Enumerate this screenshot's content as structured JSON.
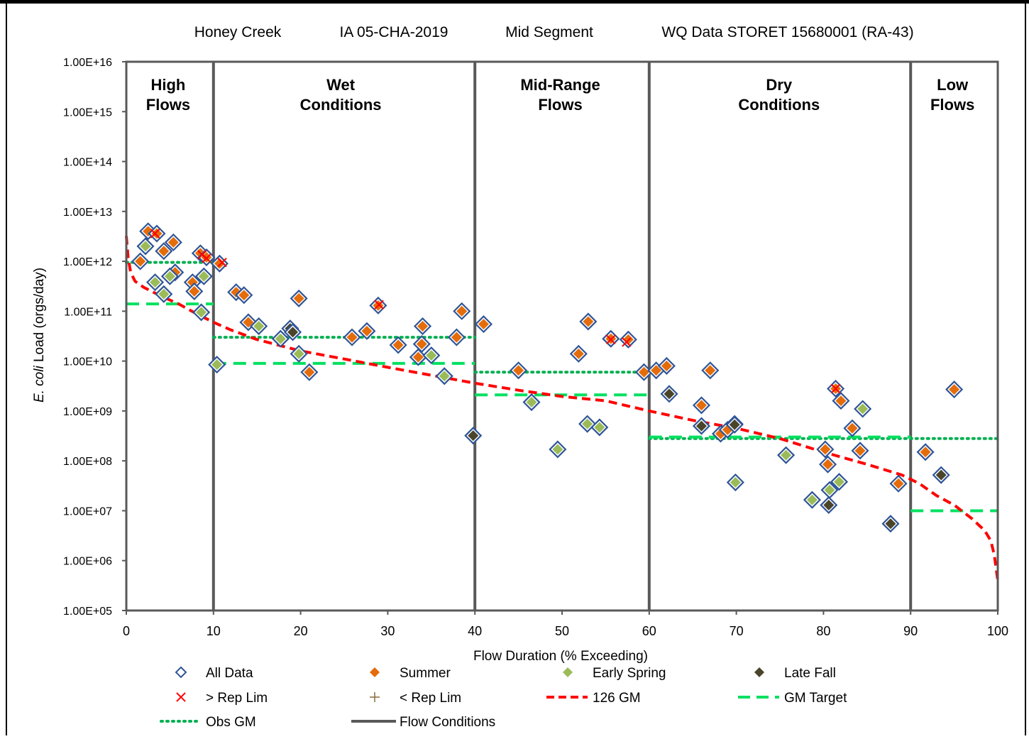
{
  "chart_data": {
    "type": "scatter",
    "title_parts": [
      "Honey Creek",
      "IA 05-CHA-2019",
      "Mid Segment",
      "WQ Data STORET 15680001 (RA-43)"
    ],
    "xlabel": "Flow Duration (% Exceeding)",
    "ylabel_italic": "E. coli",
    "ylabel_rest": " Load (orgs/day)",
    "xlim": [
      0,
      100
    ],
    "ylim": [
      100000,
      10000000000000000
    ],
    "yscale": "log",
    "x_ticks": [
      "0",
      "10",
      "20",
      "30",
      "40",
      "50",
      "60",
      "70",
      "80",
      "90",
      "100"
    ],
    "y_ticks": [
      "1.00E+05",
      "1.00E+06",
      "1.00E+07",
      "1.00E+08",
      "1.00E+09",
      "1.00E+10",
      "1.00E+11",
      "1.00E+12",
      "1.00E+13",
      "1.00E+14",
      "1.00E+15",
      "1.00E+16"
    ],
    "legend_position": "bottom",
    "zones": [
      {
        "label_lines": [
          "High",
          "Flows"
        ],
        "x_center": 4.8
      },
      {
        "label_lines": [
          "Wet",
          "Conditions"
        ],
        "x_center": 24.6
      },
      {
        "label_lines": [
          "Mid-Range",
          "Flows"
        ],
        "x_center": 49.8
      },
      {
        "label_lines": [
          "Dry",
          "Conditions"
        ],
        "x_center": 74.9
      },
      {
        "label_lines": [
          "Low",
          "Flows"
        ],
        "x_center": 94.8
      }
    ],
    "flow_condition_bounds": [
      10,
      40,
      60,
      90
    ],
    "legend": [
      {
        "label": "All Data",
        "symbol": "open-diamond"
      },
      {
        "label": "Summer",
        "symbol": "diamond-orange"
      },
      {
        "label": "Early Spring",
        "symbol": "diamond-green"
      },
      {
        "label": "Late Fall",
        "symbol": "diamond-dark"
      },
      {
        "label": "> Rep Lim",
        "symbol": "x-red"
      },
      {
        "label": "< Rep Lim",
        "symbol": "plus-brown"
      },
      {
        "label": "126 GM",
        "symbol": "dashed-red-line"
      },
      {
        "label": "GM Target",
        "symbol": "dashed-green-line"
      },
      {
        "label": "Obs GM",
        "symbol": "dotted-green-line"
      },
      {
        "label": "Flow Conditions",
        "symbol": "solid-gray-line"
      }
    ],
    "colors": {
      "all_data": "#2f5597",
      "summer": "#e46c0a",
      "early_spring": "#9bbb59",
      "late_fall": "#4a452a",
      "above_rep_lim": "#ff0000",
      "below_rep_lim": "#8b6b3a",
      "gm_126": "#ff0000",
      "gm_target": "#00e060",
      "obs_gm": "#00b050",
      "flow_conditions": "#595959"
    },
    "series": [
      {
        "name": "Summer",
        "points": [
          [
            1.6,
            1000000000000.0
          ],
          [
            2.5,
            4000000000000.0
          ],
          [
            3.5,
            3600000000000.0
          ],
          [
            4.3,
            1600000000000.0
          ],
          [
            5.4,
            2400000000000.0
          ],
          [
            5.6,
            600000000000.0
          ],
          [
            7.6,
            380000000000.0
          ],
          [
            7.8,
            250000000000.0
          ],
          [
            8.5,
            1450000000000.0
          ],
          [
            9.2,
            1200000000000.0
          ],
          [
            10.7,
            900000000000.0
          ],
          [
            12.6,
            240000000000.0
          ],
          [
            13.5,
            210000000000.0
          ],
          [
            14,
            60000000000.0
          ],
          [
            19.8,
            180000000000.0
          ],
          [
            21,
            6000000000.0
          ],
          [
            25.9,
            30000000000.0
          ],
          [
            27.6,
            40000000000.0
          ],
          [
            28.9,
            130000000000.0
          ],
          [
            31.2,
            21000000000.0
          ],
          [
            33.5,
            12000000000.0
          ],
          [
            33.9,
            22000000000.0
          ],
          [
            34,
            50000000000.0
          ],
          [
            37.9,
            30000000000.0
          ],
          [
            38.5,
            100000000000.0
          ],
          [
            41,
            55000000000.0
          ],
          [
            45,
            6500000000.0
          ],
          [
            51.9,
            14000000000.0
          ],
          [
            53,
            62000000000.0
          ],
          [
            55.6,
            28000000000.0
          ],
          [
            57.6,
            27000000000.0
          ],
          [
            59.4,
            6000000000.0
          ],
          [
            60.8,
            6500000000.0
          ],
          [
            62,
            8000000000.0
          ],
          [
            66,
            1300000000.0
          ],
          [
            67,
            6500000000.0
          ],
          [
            68.2,
            350000000.0
          ],
          [
            69,
            420000000.0
          ],
          [
            80.2,
            170000000.0
          ],
          [
            80.5,
            85000000.0
          ],
          [
            81.4,
            2800000000.0
          ],
          [
            82,
            1600000000.0
          ],
          [
            83.3,
            450000000.0
          ],
          [
            84.2,
            160000000.0
          ],
          [
            88.6,
            35000000.0
          ],
          [
            91.7,
            150000000.0
          ],
          [
            95,
            2700000000.0
          ]
        ]
      },
      {
        "name": "Early Spring",
        "points": [
          [
            2.2,
            2000000000000.0
          ],
          [
            3.3,
            380000000000.0
          ],
          [
            4.3,
            220000000000.0
          ],
          [
            5,
            500000000000.0
          ],
          [
            8.6,
            95000000000.0
          ],
          [
            8.9,
            500000000000.0
          ],
          [
            10.4,
            8500000000.0
          ],
          [
            15.2,
            50000000000.0
          ],
          [
            17.7,
            28000000000.0
          ],
          [
            19.8,
            14000000000.0
          ],
          [
            35,
            13000000000.0
          ],
          [
            36.5,
            5000000000.0
          ],
          [
            46.5,
            1500000000.0
          ],
          [
            49.5,
            170000000.0
          ],
          [
            52.9,
            550000000.0
          ],
          [
            54.3,
            470000000.0
          ],
          [
            69.8,
            550000000.0
          ],
          [
            69.9,
            37000000.0
          ],
          [
            75.7,
            130000000.0
          ],
          [
            78.7,
            16500000.0
          ],
          [
            80.7,
            26000000.0
          ],
          [
            81.8,
            38000000.0
          ],
          [
            84.5,
            1100000000.0
          ]
        ]
      },
      {
        "name": "Late Fall",
        "points": [
          [
            18.8,
            45000000000.0
          ],
          [
            19.1,
            38000000000.0
          ],
          [
            39.8,
            320000000.0
          ],
          [
            62.3,
            2200000000.0
          ],
          [
            66,
            500000000.0
          ],
          [
            69.8,
            530000000.0
          ],
          [
            80.6,
            13000000.0
          ],
          [
            87.7,
            5500000.0
          ],
          [
            93.5,
            52000000.0
          ]
        ]
      },
      {
        "name": "> Rep Lim",
        "points": [
          [
            3.3,
            3600000000000.0
          ],
          [
            8.7,
            1350000000000.0
          ],
          [
            9.2,
            1150000000000.0
          ],
          [
            11,
            950000000000.0
          ],
          [
            29,
            135000000000.0
          ],
          [
            55.6,
            27000000000.0
          ],
          [
            57.4,
            24000000000.0
          ],
          [
            81.4,
            2800000000.0
          ]
        ]
      }
    ],
    "lines": {
      "gm_126": [
        [
          0,
          3200000000000.0
        ],
        [
          0.2,
          1200000000000.0
        ],
        [
          0.5,
          600000000000.0
        ],
        [
          1,
          400000000000.0
        ],
        [
          2,
          300000000000.0
        ],
        [
          4,
          200000000000.0
        ],
        [
          6,
          140000000000.0
        ],
        [
          8,
          90000000000.0
        ],
        [
          10,
          60000000000.0
        ],
        [
          12,
          42000000000.0
        ],
        [
          15,
          27000000000.0
        ],
        [
          20,
          16000000000.0
        ],
        [
          25,
          11000000000.0
        ],
        [
          30,
          7500000000.0
        ],
        [
          35,
          5200000000.0
        ],
        [
          40,
          3600000000.0
        ],
        [
          45,
          2600000000.0
        ],
        [
          50,
          1950000000.0
        ],
        [
          55,
          1600000000.0
        ],
        [
          60,
          1000000000.0
        ],
        [
          65,
          650000000.0
        ],
        [
          70,
          450000000.0
        ],
        [
          75,
          280000000.0
        ],
        [
          80,
          150000000.0
        ],
        [
          85,
          85000000.0
        ],
        [
          89,
          52000000.0
        ],
        [
          91,
          35000000.0
        ],
        [
          93,
          20000000.0
        ],
        [
          95,
          13000000.0
        ],
        [
          97,
          7000000.0
        ],
        [
          98.5,
          4000000.0
        ],
        [
          99.2,
          2500000.0
        ],
        [
          99.6,
          1300000.0
        ],
        [
          100,
          400000.0
        ]
      ],
      "gm_target": [
        {
          "x": [
            0,
            10
          ],
          "y": 140000000000.0
        },
        {
          "x": [
            10,
            40
          ],
          "y": 9000000000.0
        },
        {
          "x": [
            40,
            60
          ],
          "y": 2100000000.0
        },
        {
          "x": [
            60,
            90
          ],
          "y": 300000000.0
        },
        {
          "x": [
            90,
            100
          ],
          "y": 10000000.0
        }
      ],
      "obs_gm": [
        {
          "x": [
            0,
            10
          ],
          "y": 950000000000.0
        },
        {
          "x": [
            10,
            40
          ],
          "y": 30000000000.0
        },
        {
          "x": [
            40,
            60
          ],
          "y": 6000000000.0
        },
        {
          "x": [
            60,
            100
          ],
          "y": 280000000.0
        }
      ]
    }
  }
}
